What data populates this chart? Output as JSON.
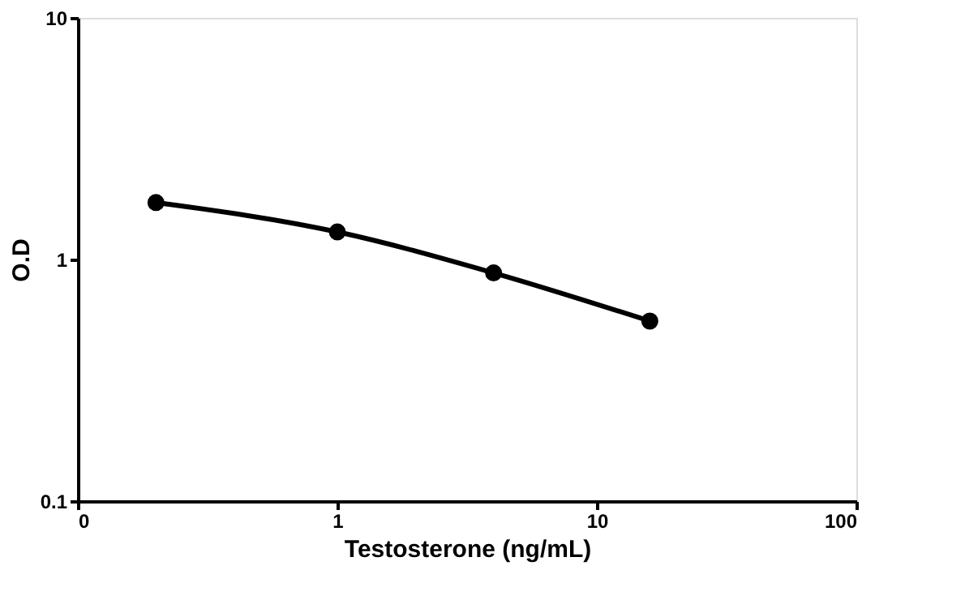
{
  "chart_data": {
    "type": "line",
    "xlabel": "Testosterone (ng/mL)",
    "ylabel": "O.D",
    "x": [
      0.2,
      1,
      4,
      16
    ],
    "series": [
      {
        "color": "#000000",
        "values": [
          1.72,
          1.3,
          0.88,
          0.556
        ]
      }
    ],
    "log": "xy",
    "xlim": [
      0.1,
      100
    ],
    "ylim": [
      0.1,
      10
    ],
    "xticks": [
      {
        "value": 0.1,
        "label": "0"
      },
      1,
      10,
      100
    ],
    "yticks": [
      0.1,
      1,
      10
    ],
    "grid": false,
    "marker": "circle",
    "line_style": "solid"
  }
}
